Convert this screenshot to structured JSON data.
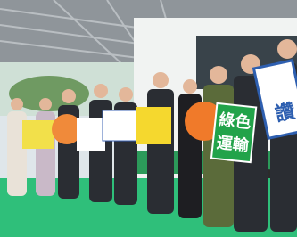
{
  "green_sign": {
    "line1": "綠色",
    "line2": "運輸"
  },
  "blue_sign": {
    "text": "讚"
  }
}
